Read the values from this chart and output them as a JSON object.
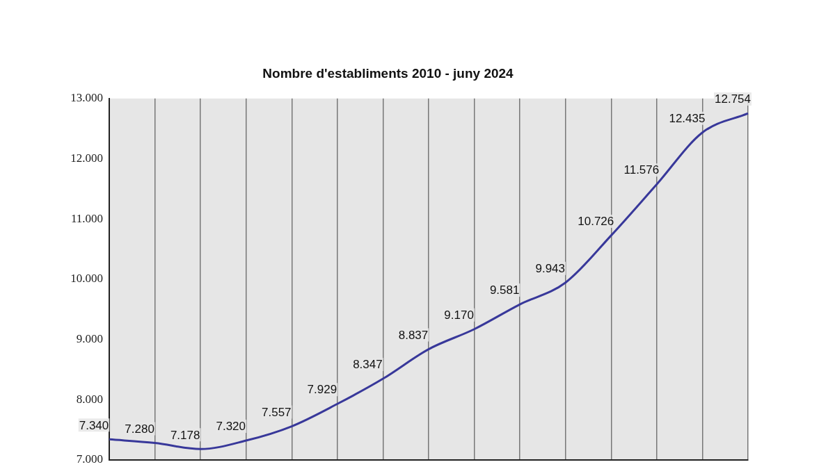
{
  "chart_data": {
    "type": "line",
    "title": "Nombre d'establiments 2010 - juny 2024",
    "categories": [
      null,
      null,
      null,
      null,
      null,
      null,
      null,
      null,
      null,
      null,
      null,
      null,
      null,
      null,
      null
    ],
    "series": [
      {
        "color": "#38389a",
        "values": [
          7340,
          7280,
          7178,
          7320,
          7557,
          7929,
          8347,
          8837,
          9170,
          9581,
          9943,
          10726,
          11576,
          12435,
          12754
        ],
        "value_labels": [
          "7.340",
          "7.280",
          "7.178",
          "7.320",
          "7.557",
          "7.929",
          "8.347",
          "8.837",
          "9.170",
          "9.581",
          "9.943",
          "10.726",
          "11.576",
          "12.435",
          "12.754"
        ]
      }
    ],
    "ylim": [
      7000,
      13000
    ],
    "yticks": [
      {
        "value": 7000,
        "label": "7.000"
      },
      {
        "value": 8000,
        "label": "8.000"
      },
      {
        "value": 9000,
        "label": "9.000"
      },
      {
        "value": 10000,
        "label": "10.000"
      },
      {
        "value": 11000,
        "label": "11.000"
      },
      {
        "value": 12000,
        "label": "12.000"
      },
      {
        "value": 13000,
        "label": "13.000"
      }
    ],
    "grid": "x",
    "legend": false,
    "marker": "none",
    "line_style": "solid",
    "tick_labels": "y"
  }
}
